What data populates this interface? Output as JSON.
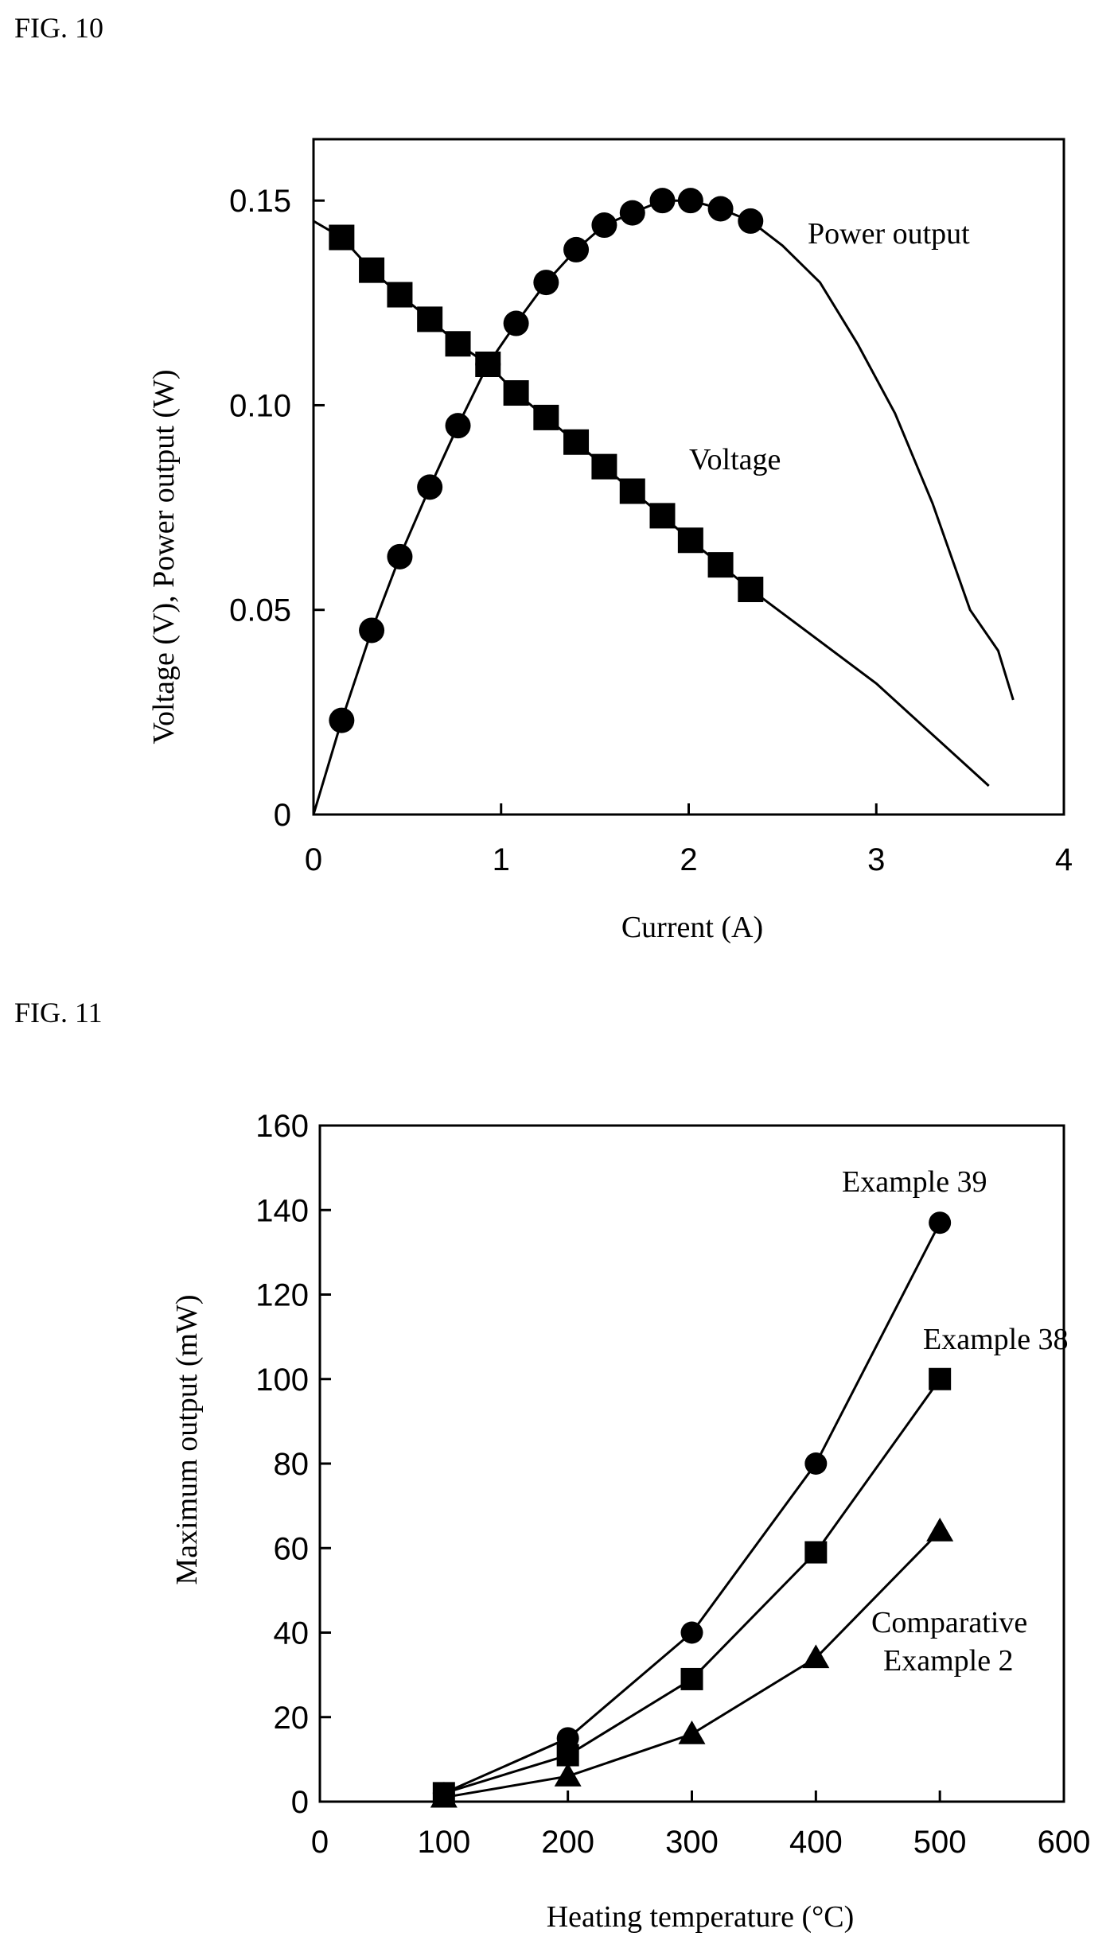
{
  "figures": {
    "fig10_label": "FIG. 10",
    "fig11_label": "FIG. 11"
  },
  "chart_data": [
    {
      "type": "line",
      "title": "",
      "xlabel": "Current (A)",
      "ylabel": "Voltage (V), Power output (W)",
      "xlim": [
        0,
        4
      ],
      "ylim": [
        0,
        0.165
      ],
      "x_ticks": [
        "0",
        "1",
        "2",
        "3",
        "4"
      ],
      "y_ticks": [
        "0",
        "0.05",
        "0.10",
        "0.15"
      ],
      "series": [
        {
          "name": "Voltage",
          "marker": "square",
          "x": [
            0.15,
            0.31,
            0.46,
            0.62,
            0.77,
            0.93,
            1.08,
            1.24,
            1.4,
            1.55,
            1.7,
            1.86,
            2.01,
            2.17,
            2.33
          ],
          "y": [
            0.141,
            0.133,
            0.127,
            0.121,
            0.115,
            0.11,
            0.103,
            0.097,
            0.091,
            0.085,
            0.079,
            0.073,
            0.067,
            0.061,
            0.055
          ],
          "line_x": [
            0,
            0.15,
            0.31,
            0.46,
            0.62,
            0.77,
            0.93,
            1.08,
            1.24,
            1.4,
            1.55,
            1.7,
            1.86,
            2.01,
            2.17,
            2.33,
            3.0,
            3.6
          ],
          "line_y": [
            0.145,
            0.141,
            0.133,
            0.127,
            0.121,
            0.115,
            0.11,
            0.103,
            0.097,
            0.091,
            0.085,
            0.079,
            0.073,
            0.067,
            0.061,
            0.055,
            0.032,
            0.007
          ]
        },
        {
          "name": "Power output",
          "marker": "circle",
          "x": [
            0.15,
            0.31,
            0.46,
            0.62,
            0.77,
            0.93,
            1.08,
            1.24,
            1.4,
            1.55,
            1.7,
            1.86,
            2.01,
            2.17,
            2.33
          ],
          "y": [
            0.023,
            0.045,
            0.063,
            0.08,
            0.095,
            0.11,
            0.12,
            0.13,
            0.138,
            0.144,
            0.147,
            0.15,
            0.15,
            0.148,
            0.145
          ],
          "line_x": [
            0,
            0.15,
            0.31,
            0.46,
            0.62,
            0.77,
            0.93,
            1.08,
            1.24,
            1.4,
            1.55,
            1.7,
            1.86,
            2.01,
            2.17,
            2.33,
            2.5,
            2.7,
            2.9,
            3.1,
            3.3,
            3.5,
            3.65,
            3.73
          ],
          "line_y": [
            0,
            0.023,
            0.045,
            0.063,
            0.08,
            0.095,
            0.11,
            0.12,
            0.13,
            0.138,
            0.144,
            0.147,
            0.15,
            0.15,
            0.148,
            0.145,
            0.139,
            0.13,
            0.115,
            0.098,
            0.076,
            0.05,
            0.04,
            0.028
          ]
        }
      ],
      "annotations": [
        "Power output",
        "Voltage"
      ]
    },
    {
      "type": "line",
      "title": "",
      "xlabel": "Heating temperature (°C)",
      "ylabel": "Maximum output (mW)",
      "xlim": [
        0,
        600
      ],
      "ylim": [
        0,
        160
      ],
      "x_ticks": [
        "0",
        "100",
        "200",
        "300",
        "400",
        "500",
        "600"
      ],
      "y_ticks": [
        "0",
        "20",
        "40",
        "60",
        "80",
        "100",
        "120",
        "140",
        "160"
      ],
      "series": [
        {
          "name": "Example 39",
          "marker": "circle",
          "x": [
            100,
            200,
            300,
            400,
            500
          ],
          "y": [
            2,
            15,
            40,
            80,
            137
          ]
        },
        {
          "name": "Example 38",
          "marker": "square",
          "x": [
            100,
            200,
            300,
            400,
            500
          ],
          "y": [
            2,
            11,
            29,
            59,
            100
          ]
        },
        {
          "name": "Comparative Example 2",
          "marker": "triangle",
          "x": [
            100,
            200,
            300,
            400,
            500
          ],
          "y": [
            1,
            6,
            16,
            34,
            64
          ]
        }
      ],
      "annotations": [
        "Example 39",
        "Example 38",
        "Comparative",
        "Example 2"
      ]
    }
  ]
}
